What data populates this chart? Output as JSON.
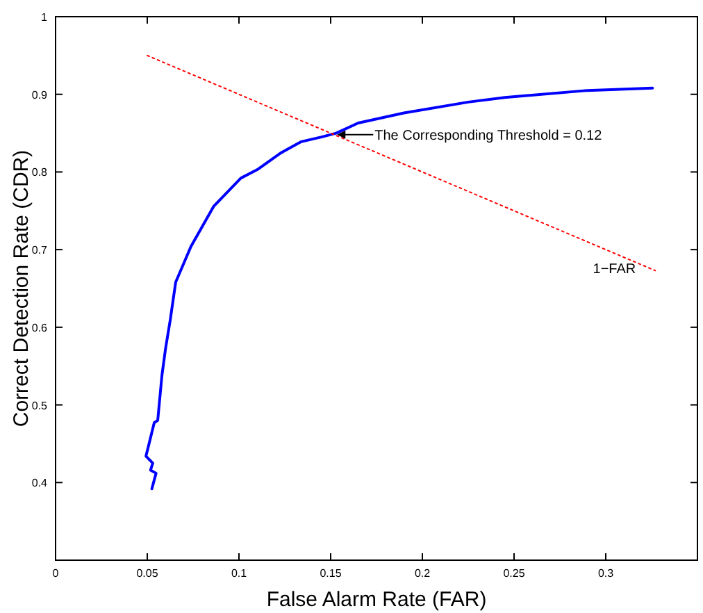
{
  "chart_data": {
    "type": "line",
    "xlabel": "False Alarm Rate (FAR)",
    "ylabel": "Correct Detection Rate (CDR)",
    "xlim": [
      0,
      0.35
    ],
    "ylim": [
      0.3,
      1
    ],
    "xticks": [
      0,
      0.05,
      0.1,
      0.15,
      0.2,
      0.25,
      0.3
    ],
    "yticks": [
      0.4,
      0.5,
      0.6,
      0.7,
      0.8,
      0.9,
      1
    ],
    "grid": false,
    "legend": false,
    "marker": "none",
    "series": [
      {
        "color": "#0000ff",
        "line_style": "solid",
        "x": [
          0.0525,
          0.0548,
          0.0518,
          0.053,
          0.0493,
          0.0538,
          0.0557,
          0.058,
          0.06,
          0.0625,
          0.0655,
          0.0738,
          0.0863,
          0.101,
          0.11,
          0.1225,
          0.134,
          0.145,
          0.153,
          0.165,
          0.19,
          0.225,
          0.245,
          0.29,
          0.3255
        ],
        "values": [
          0.392,
          0.412,
          0.416,
          0.425,
          0.434,
          0.477,
          0.48,
          0.538,
          0.573,
          0.609,
          0.658,
          0.704,
          0.756,
          0.792,
          0.803,
          0.824,
          0.839,
          0.845,
          0.85,
          0.863,
          0.876,
          0.89,
          0.896,
          0.905,
          0.908
        ]
      },
      {
        "name": "1−FAR",
        "color": "#ff0000",
        "line_style": "dotted",
        "x": [
          0.05,
          0.327
        ],
        "values": [
          0.95,
          0.673
        ]
      }
    ],
    "annotations": [
      {
        "text": "The Corresponding Threshold = 0.12",
        "x": 0.152,
        "y": 0.848
      }
    ]
  }
}
